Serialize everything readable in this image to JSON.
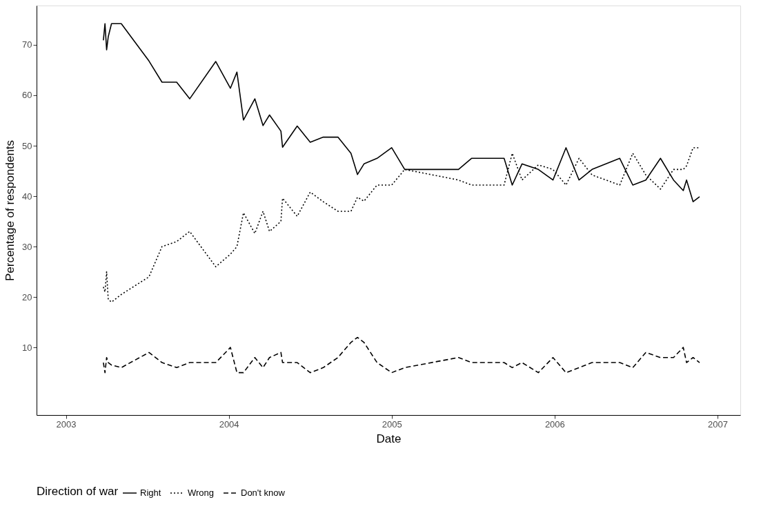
{
  "chart_data": {
    "type": "line",
    "xlabel": "Date",
    "ylabel": "Percentage of respondents",
    "legend_title": "Direction of war",
    "x": [
      2003.23,
      2003.24,
      2003.25,
      2003.26,
      2003.28,
      2003.34,
      2003.51,
      2003.59,
      2003.68,
      2003.76,
      2003.92,
      2004.01,
      2004.05,
      2004.09,
      2004.16,
      2004.21,
      2004.25,
      2004.32,
      2004.33,
      2004.42,
      2004.5,
      2004.58,
      2004.67,
      2004.75,
      2004.79,
      2004.83,
      2004.91,
      2005.0,
      2005.08,
      2005.41,
      2005.49,
      2005.69,
      2005.74,
      2005.8,
      2005.9,
      2005.99,
      2006.07,
      2006.15,
      2006.23,
      2006.4,
      2006.48,
      2006.56,
      2006.65,
      2006.73,
      2006.79,
      2006.81,
      2006.85,
      2006.89
    ],
    "series": [
      {
        "name": "Right",
        "color": "#000000",
        "line_style": "solid",
        "values": [
          70.9,
          74.2,
          69.0,
          71.6,
          74.2,
          74.2,
          66.8,
          62.6,
          62.6,
          59.3,
          66.7,
          61.4,
          64.6,
          55.1,
          59.3,
          54.0,
          56.1,
          52.9,
          49.7,
          53.9,
          50.7,
          51.7,
          51.7,
          48.5,
          44.3,
          46.4,
          47.5,
          49.6,
          45.3,
          45.3,
          47.5,
          47.5,
          42.2,
          46.4,
          45.3,
          43.2,
          49.6,
          43.2,
          45.3,
          47.5,
          42.2,
          43.2,
          47.5,
          43.2,
          41.1,
          43.2,
          38.9,
          39.9
        ]
      },
      {
        "name": "Wrong",
        "color": "#000000",
        "line_style": "dotted",
        "values": [
          22,
          21,
          25,
          19.5,
          19,
          20.5,
          24,
          30,
          31,
          33,
          26,
          28.5,
          30,
          36.7,
          32.6,
          37,
          33,
          35,
          39.6,
          36,
          40.8,
          38.9,
          37,
          37,
          39.8,
          39,
          42.2,
          42.2,
          45.3,
          43.2,
          42.2,
          42.2,
          48.5,
          43.2,
          46.2,
          45.3,
          42.2,
          47.5,
          44.2,
          42.2,
          48.5,
          44.2,
          41.4,
          45.3,
          45.3,
          46,
          49.6,
          49.6
        ]
      },
      {
        "name": "Don't know",
        "color": "#000000",
        "line_style": "dashed",
        "values": [
          7,
          5,
          8,
          7,
          6.5,
          6,
          9,
          7,
          6,
          7,
          7,
          10,
          5,
          5,
          8,
          6,
          8,
          9,
          7,
          7,
          5,
          6,
          8,
          11,
          12,
          11,
          7,
          5,
          6,
          8,
          7,
          7,
          6,
          7,
          5,
          8,
          5,
          6,
          7,
          7,
          6,
          9,
          8,
          8,
          10,
          7,
          8,
          7
        ]
      }
    ],
    "xlim": [
      2002.82,
      2007.14
    ],
    "xticks": [
      2003,
      2004,
      2005,
      2006,
      2007
    ],
    "ylim": [
      -3.4,
      77.8
    ],
    "yticks": [
      10,
      20,
      30,
      40,
      50,
      60,
      70
    ],
    "grid": false,
    "legend": "bottom",
    "marker": "none"
  }
}
